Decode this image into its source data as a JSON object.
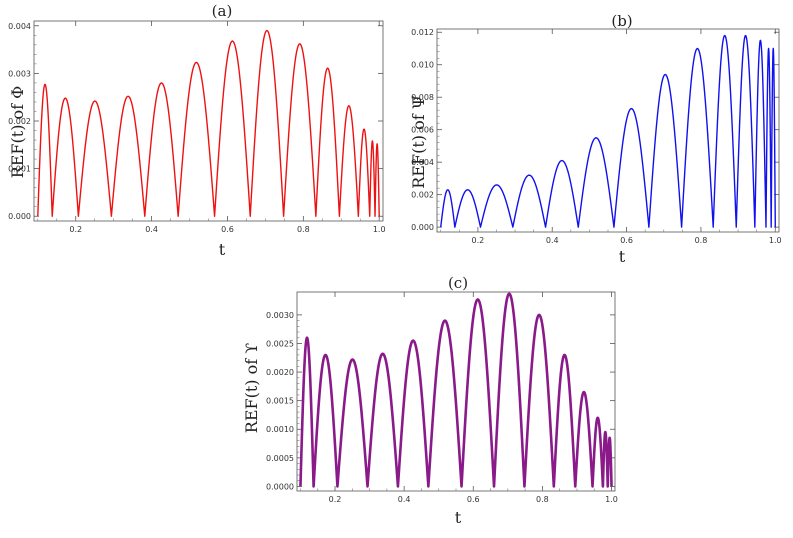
{
  "figure": {
    "panels": [
      {
        "label": "(a)",
        "ylabel": "REF(t) of Φ",
        "xlabel": "t",
        "color": "#ee1111"
      },
      {
        "label": "(b)",
        "ylabel": "REF(t) of Ψ",
        "xlabel": "t",
        "color": "#1111ee"
      },
      {
        "label": "(c)",
        "ylabel": "REF(t) of ϒ",
        "xlabel": "t",
        "color": "#8a1a8a"
      }
    ]
  },
  "chart_data": [
    {
      "type": "line",
      "title": "(a)",
      "xlabel": "t",
      "ylabel": "REF(t) of Φ",
      "xlim": [
        0.09,
        1.01
      ],
      "ylim": [
        -0.0001,
        0.0041
      ],
      "x_ticks": [
        0.2,
        0.4,
        0.6,
        0.8,
        1.0
      ],
      "x_tick_labels": [
        "0.2",
        "0.4",
        "0.6",
        "0.8",
        "1.0"
      ],
      "y_ticks": [
        0.0,
        0.001,
        0.002,
        0.003,
        0.004
      ],
      "y_tick_labels": [
        "0.000",
        "0.001",
        "0.002",
        "0.003",
        "0.004"
      ],
      "series": [
        {
          "name": "REF(t) of Φ",
          "color": "#ee1111",
          "zeros": [
            0.1,
            0.138,
            0.207,
            0.294,
            0.382,
            0.47,
            0.566,
            0.66,
            0.748,
            0.833,
            0.895,
            0.945,
            0.975,
            0.989,
            1.0
          ],
          "peaks": [
            0.00277,
            0.00248,
            0.00242,
            0.00252,
            0.0028,
            0.00323,
            0.00368,
            0.0039,
            0.00362,
            0.00311,
            0.00232,
            0.00183,
            0.00158,
            0.00152
          ]
        }
      ]
    },
    {
      "type": "line",
      "title": "(b)",
      "xlabel": "t",
      "ylabel": "REF(t) of Ψ",
      "xlim": [
        0.09,
        1.01
      ],
      "ylim": [
        -0.0003,
        0.0122
      ],
      "x_ticks": [
        0.2,
        0.4,
        0.6,
        0.8,
        1.0
      ],
      "x_tick_labels": [
        "0.2",
        "0.4",
        "0.6",
        "0.8",
        "1.0"
      ],
      "y_ticks": [
        0.0,
        0.002,
        0.004,
        0.006,
        0.008,
        0.01,
        0.012
      ],
      "y_tick_labels": [
        "0.000",
        "0.002",
        "0.004",
        "0.006",
        "0.008",
        "0.010",
        "0.012"
      ],
      "series": [
        {
          "name": "REF(t) of Ψ",
          "color": "#1111ee",
          "zeros": [
            0.1,
            0.138,
            0.207,
            0.294,
            0.382,
            0.47,
            0.566,
            0.66,
            0.748,
            0.833,
            0.895,
            0.945,
            0.975,
            0.989,
            1.0
          ],
          "peaks": [
            0.0023,
            0.0023,
            0.0026,
            0.0032,
            0.0041,
            0.0055,
            0.0073,
            0.0094,
            0.011,
            0.0118,
            0.0118,
            0.0115,
            0.011,
            0.011
          ]
        }
      ]
    },
    {
      "type": "line",
      "title": "(c)",
      "xlabel": "t",
      "ylabel": "REF(t) of ϒ",
      "xlim": [
        0.09,
        1.01
      ],
      "ylim": [
        -8e-05,
        0.0034
      ],
      "x_ticks": [
        0.2,
        0.4,
        0.6,
        0.8,
        1.0
      ],
      "x_tick_labels": [
        "0.2",
        "0.4",
        "0.6",
        "0.8",
        "1.0"
      ],
      "y_ticks": [
        0.0,
        0.0005,
        0.001,
        0.0015,
        0.002,
        0.0025,
        0.003
      ],
      "y_tick_labels": [
        "0.0000",
        "0.0005",
        "0.0010",
        "0.0015",
        "0.0020",
        "0.0025",
        "0.0030"
      ],
      "series": [
        {
          "name": "REF(t) of ϒ",
          "color": "#8a1a8a",
          "zeros": [
            0.1,
            0.138,
            0.207,
            0.294,
            0.382,
            0.47,
            0.566,
            0.66,
            0.748,
            0.833,
            0.895,
            0.945,
            0.975,
            0.989,
            1.0
          ],
          "peaks": [
            0.0026,
            0.0023,
            0.00222,
            0.00232,
            0.00255,
            0.0029,
            0.00327,
            0.00337,
            0.003,
            0.0023,
            0.00165,
            0.0012,
            0.00095,
            0.00085
          ]
        }
      ]
    }
  ]
}
